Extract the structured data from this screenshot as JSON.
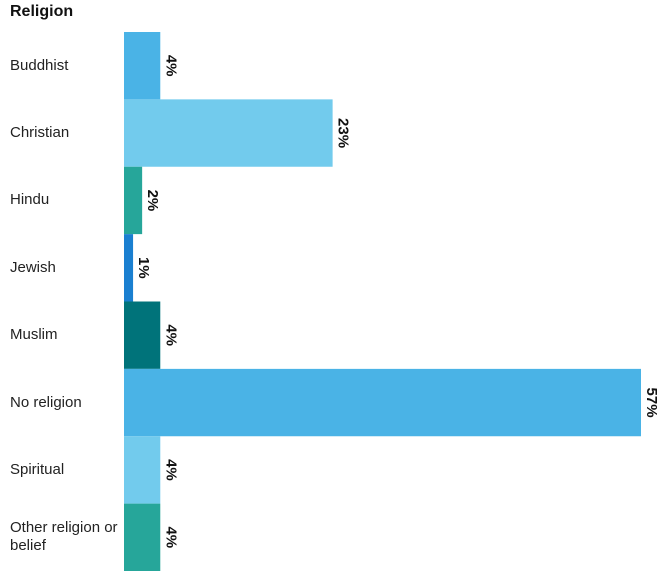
{
  "chart_data": {
    "type": "bar",
    "orientation": "horizontal",
    "title": "Religion",
    "categories": [
      "Buddhist",
      "Christian",
      "Hindu",
      "Jewish",
      "Muslim",
      "No religion",
      "Spiritual",
      "Other religion or belief"
    ],
    "values": [
      4,
      23,
      2,
      1,
      4,
      57,
      4,
      4
    ],
    "value_labels": [
      "4%",
      "23%",
      "2%",
      "1%",
      "4%",
      "57%",
      "4%",
      "4%"
    ],
    "colors": [
      "#4ab3e6",
      "#72cbed",
      "#26a69a",
      "#1a7fd0",
      "#00737a",
      "#4ab3e6",
      "#72cbed",
      "#26a69a"
    ]
  }
}
